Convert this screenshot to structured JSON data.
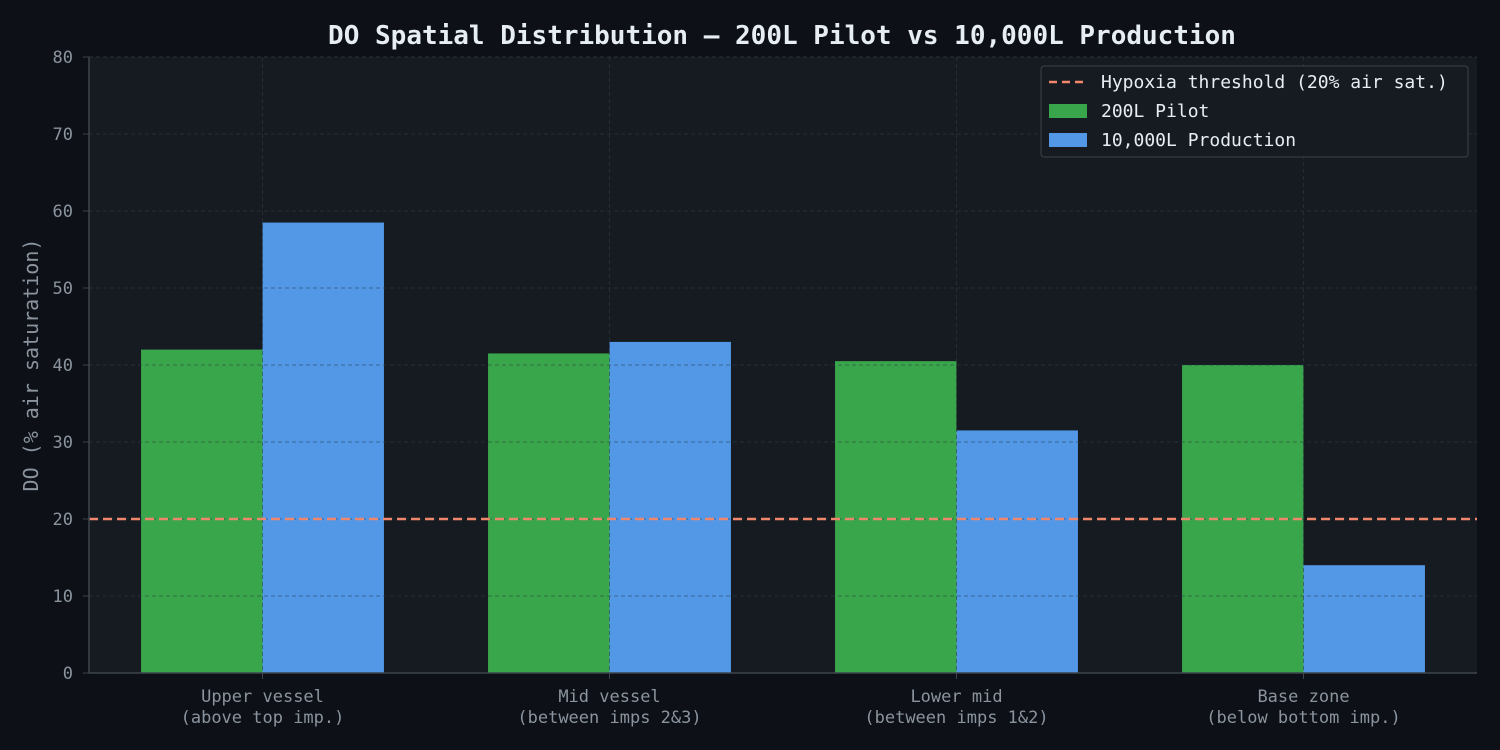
{
  "chart_data": {
    "type": "bar",
    "title": "DO Spatial Distribution — 200L Pilot vs 10,000L Production",
    "xlabel": "",
    "ylabel": "DO (% air saturation)",
    "ylim": [
      0,
      80
    ],
    "yticks": [
      0,
      10,
      20,
      30,
      40,
      50,
      60,
      70,
      80
    ],
    "categories": [
      [
        "Upper vessel",
        "(above top imp.)"
      ],
      [
        "Mid vessel",
        "(between imps 2&3)"
      ],
      [
        "Lower mid",
        "(between imps 1&2)"
      ],
      [
        "Base zone",
        "(below bottom imp.)"
      ]
    ],
    "series": [
      {
        "name": "200L Pilot",
        "color": "#3aa64b",
        "values": [
          42,
          41.5,
          40.5,
          40
        ]
      },
      {
        "name": "10,000L Production",
        "color": "#5298e6",
        "values": [
          58.5,
          43,
          31.5,
          14
        ]
      }
    ],
    "reference_line": {
      "name": "Hypoxia threshold (20% air sat.)",
      "value": 20,
      "color": "#f0866b",
      "style": "dashed"
    },
    "grid": true,
    "legend_position": "top-right"
  }
}
